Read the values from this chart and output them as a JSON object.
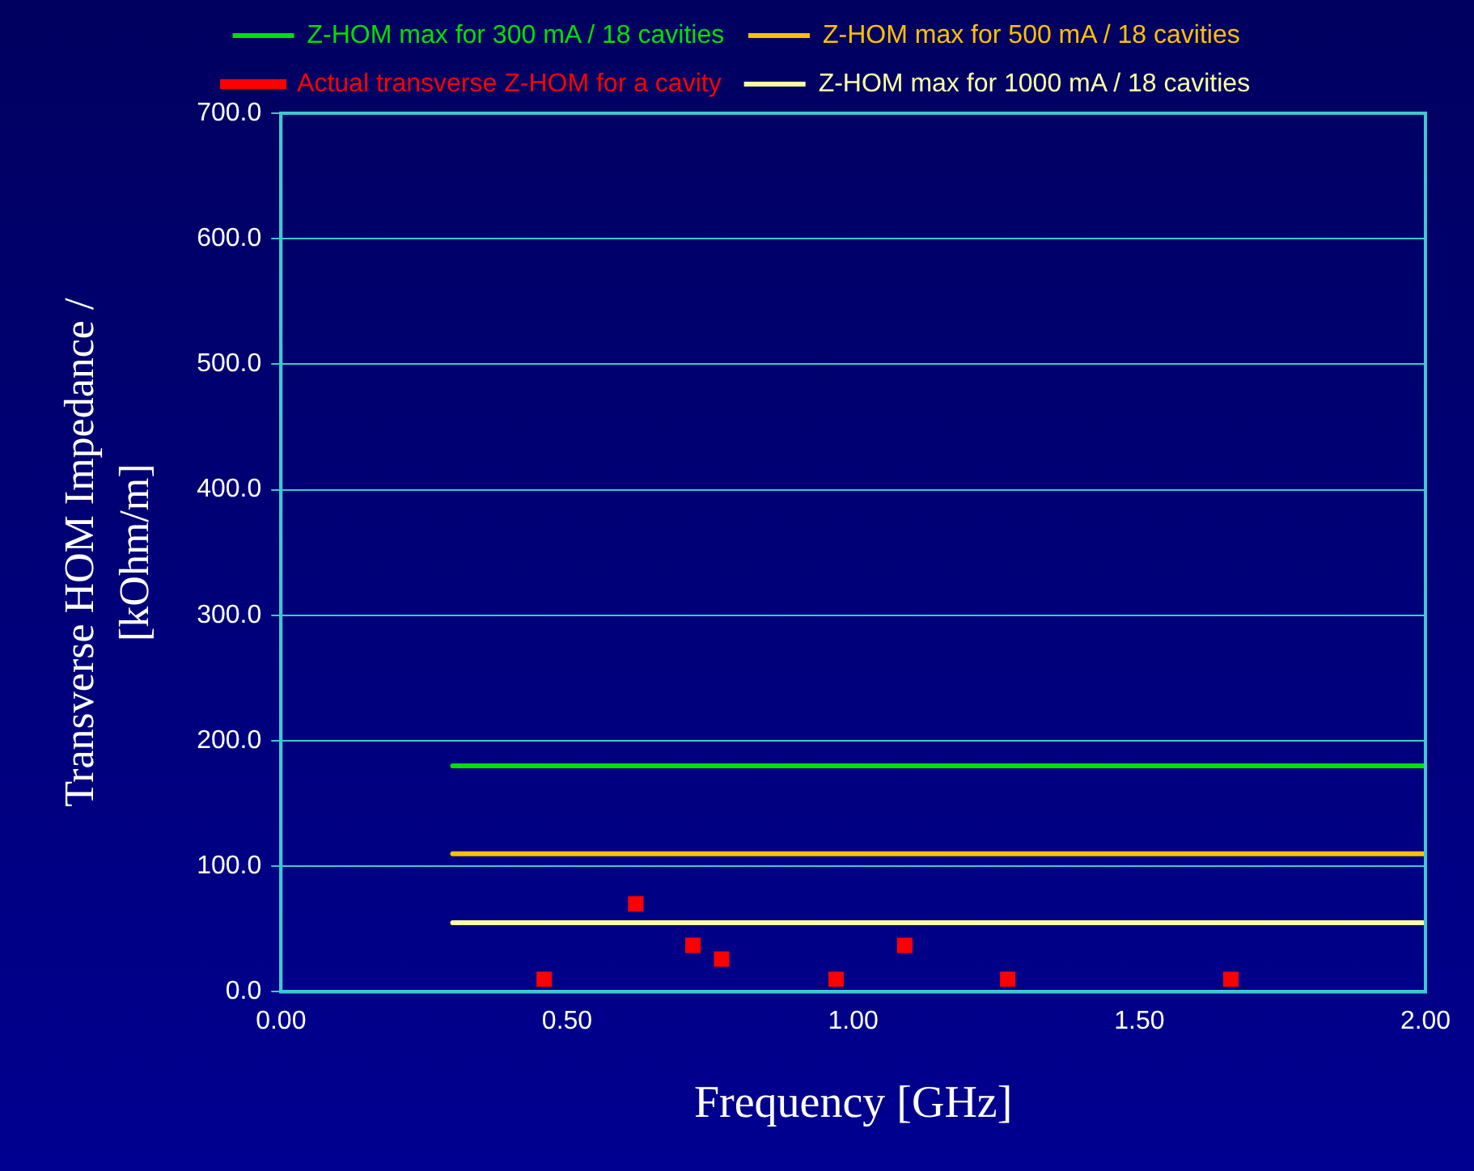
{
  "chart_data": {
    "type": "scatter",
    "xlabel": "Frequency [GHz]",
    "ylabel": "Transverse HOM Impedance / [kOhm/m]",
    "xlim": [
      0,
      2
    ],
    "xticks": [
      {
        "value": 0,
        "label": "0.00"
      },
      {
        "value": 0.5,
        "label": "0.50"
      },
      {
        "value": 1,
        "label": "1.00"
      },
      {
        "value": 1.5,
        "label": "1.50"
      },
      {
        "value": 2,
        "label": "2.00"
      }
    ],
    "ylim": [
      0,
      700
    ],
    "yticks": [
      {
        "value": 0,
        "label": "0.0"
      },
      {
        "value": 100,
        "label": "100.0"
      },
      {
        "value": 200,
        "label": "200.0"
      },
      {
        "value": 300,
        "label": "300.0"
      },
      {
        "value": 400,
        "label": "400.0"
      },
      {
        "value": 500,
        "label": "500.0"
      },
      {
        "value": 600,
        "label": "600.0"
      },
      {
        "value": 700,
        "label": "700.0"
      }
    ],
    "grid": "y",
    "legend": "top",
    "series": [
      {
        "type": "line",
        "name": "Z-HOM max for 300 mA / 18 cavities",
        "color": "#00e000",
        "x": [
          0.3,
          2.0
        ],
        "values": [
          180,
          180
        ],
        "marker": "none"
      },
      {
        "type": "line",
        "name": "Z-HOM max for 500 mA / 18 cavities",
        "color": "#ffc000",
        "x": [
          0.3,
          2.0
        ],
        "values": [
          110,
          110
        ],
        "marker": "none"
      },
      {
        "type": "scatter",
        "name": "Actual transverse Z-HOM for a cavity",
        "color": "#ff0000",
        "x": [
          0.46,
          0.62,
          0.72,
          0.77,
          0.97,
          1.09,
          1.27,
          1.66
        ],
        "values": [
          10,
          70,
          37,
          26,
          10,
          37,
          10,
          10
        ],
        "marker": "square"
      },
      {
        "type": "line",
        "name": "Z-HOM max for 1000 mA / 18 cavities",
        "color": "#ffffa0",
        "x": [
          0.3,
          2.0
        ],
        "values": [
          55,
          55
        ],
        "marker": "none"
      }
    ]
  }
}
